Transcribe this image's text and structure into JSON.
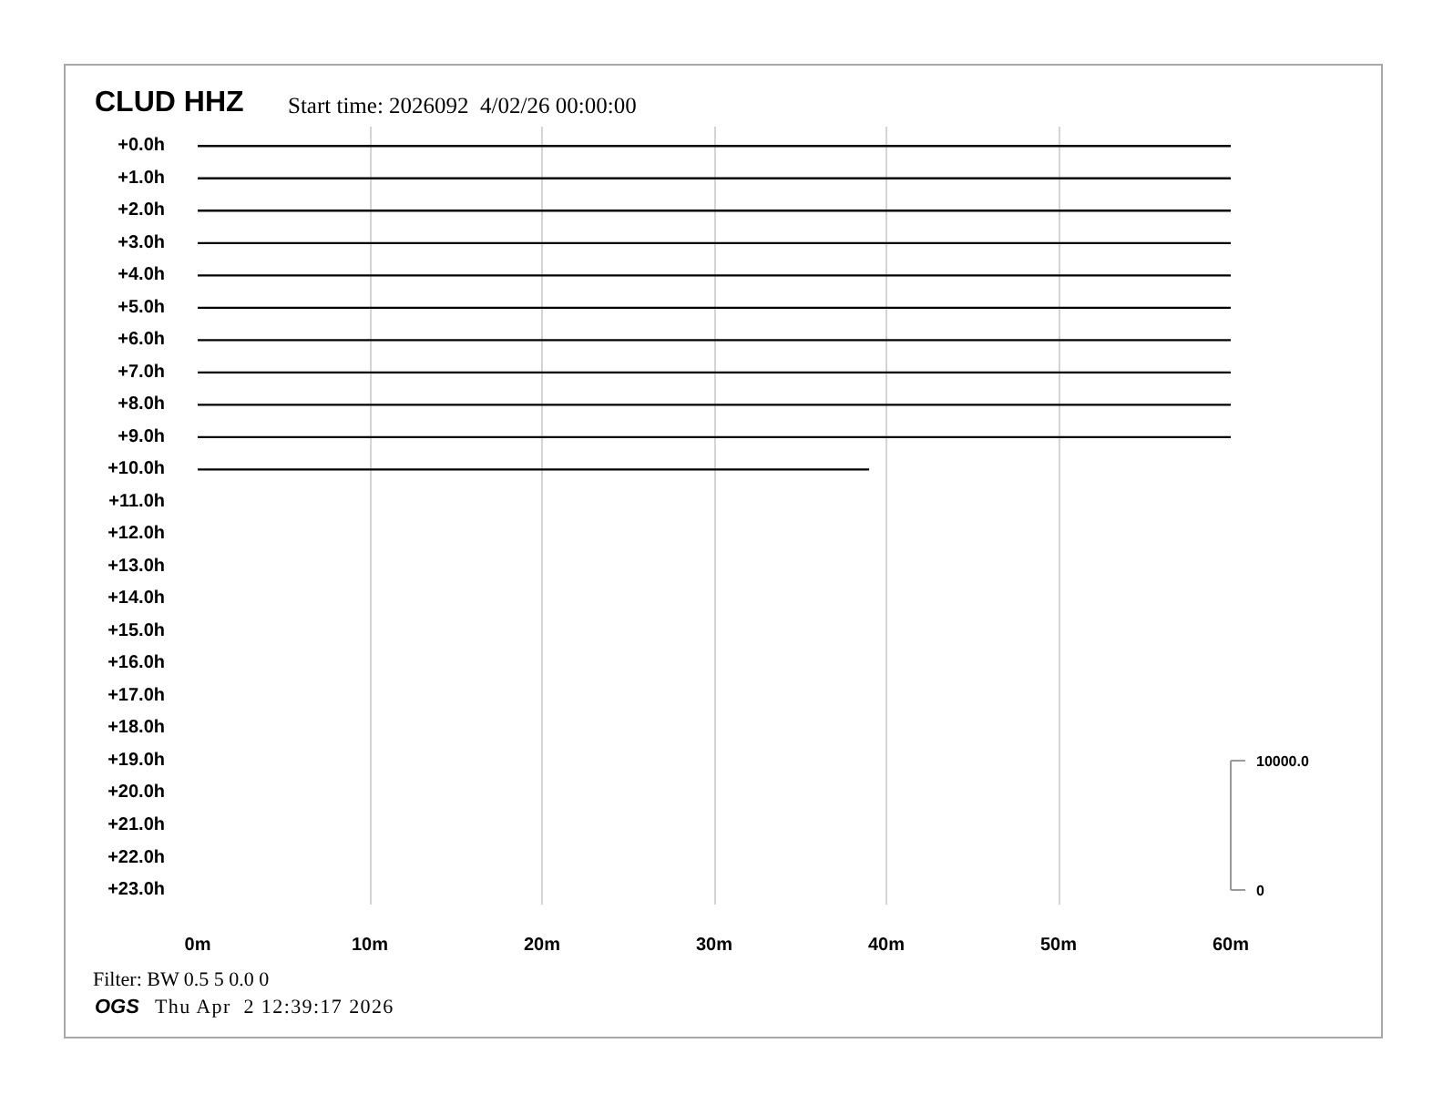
{
  "chart_data": {
    "type": "line",
    "title": "CLUD HHZ",
    "subtitle": "Start time: 2026092  4/02/26 00:00:00",
    "annotations": [
      "Filter: BW 0.5 5 0.0 0",
      "OGS",
      "Thu Apr  2 12:39:17 2026"
    ],
    "x": [
      0,
      60
    ],
    "xlim": [
      0,
      60
    ],
    "xticks": [
      {
        "value": 0,
        "label": "0m"
      },
      {
        "value": 10,
        "label": "10m"
      },
      {
        "value": 20,
        "label": "20m"
      },
      {
        "value": 30,
        "label": "30m"
      },
      {
        "value": 40,
        "label": "40m"
      },
      {
        "value": 50,
        "label": "50m"
      },
      {
        "value": 60,
        "label": "60m"
      }
    ],
    "ylim": [
      23.45,
      -0.6
    ],
    "yticks": [
      {
        "value": 0,
        "label": "+0.0h"
      },
      {
        "value": 1,
        "label": "+1.0h"
      },
      {
        "value": 2,
        "label": "+2.0h"
      },
      {
        "value": 3,
        "label": "+3.0h"
      },
      {
        "value": 4,
        "label": "+4.0h"
      },
      {
        "value": 5,
        "label": "+5.0h"
      },
      {
        "value": 6,
        "label": "+6.0h"
      },
      {
        "value": 7,
        "label": "+7.0h"
      },
      {
        "value": 8,
        "label": "+8.0h"
      },
      {
        "value": 9,
        "label": "+9.0h"
      },
      {
        "value": 10,
        "label": "+10.0h"
      },
      {
        "value": 11,
        "label": "+11.0h"
      },
      {
        "value": 12,
        "label": "+12.0h"
      },
      {
        "value": 13,
        "label": "+13.0h"
      },
      {
        "value": 14,
        "label": "+14.0h"
      },
      {
        "value": 15,
        "label": "+15.0h"
      },
      {
        "value": 16,
        "label": "+16.0h"
      },
      {
        "value": 17,
        "label": "+17.0h"
      },
      {
        "value": 18,
        "label": "+18.0h"
      },
      {
        "value": 19,
        "label": "+19.0h"
      },
      {
        "value": 20,
        "label": "+20.0h"
      },
      {
        "value": 21,
        "label": "+21.0h"
      },
      {
        "value": 22,
        "label": "+22.0h"
      },
      {
        "value": 23,
        "label": "+23.0h"
      }
    ],
    "y2lim": [
      -1125,
      59000
    ],
    "y2ticks": [
      0,
      {
        "value": 10000,
        "label": "10000.0"
      }
    ],
    "grid": "x",
    "series": [
      {
        "color": "#000000",
        "values": [
          0,
          0
        ]
      },
      {
        "color": "#000000",
        "values": [
          1,
          1
        ]
      },
      {
        "color": "#000000",
        "values": [
          2,
          2
        ]
      },
      {
        "color": "#000000",
        "values": [
          3,
          3
        ]
      },
      {
        "color": "#000000",
        "values": [
          4,
          4
        ]
      },
      {
        "color": "#000000",
        "values": [
          5,
          5
        ]
      },
      {
        "color": "#000000",
        "values": [
          6,
          6
        ]
      },
      {
        "color": "#000000",
        "values": [
          7,
          7
        ]
      },
      {
        "color": "#000000",
        "values": [
          8,
          8
        ]
      },
      {
        "color": "#000000",
        "values": [
          9,
          9
        ]
      },
      {
        "color": "#000000",
        "x": [
          0,
          39
        ],
        "values": [
          10,
          10
        ]
      }
    ]
  }
}
